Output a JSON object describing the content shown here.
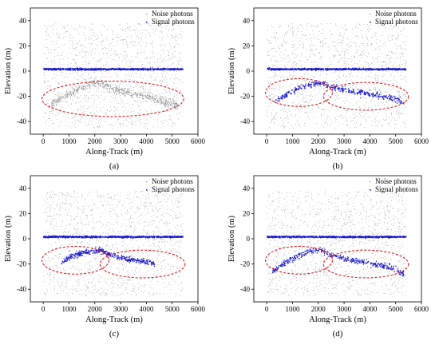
{
  "chart_data": [
    {
      "type": "scatter",
      "panel_label": "(a)",
      "xlabel": "Along-Track (m)",
      "ylabel": "Elevation (m)",
      "xlim": [
        -500,
        6000
      ],
      "ylim": [
        -50,
        50
      ],
      "xticks": [
        0,
        1000,
        2000,
        3000,
        4000,
        5000,
        6000
      ],
      "yticks": [
        -40,
        -20,
        0,
        20,
        40
      ],
      "legend": {
        "position": "top-right",
        "entries": [
          "Noise photons",
          "Signal photons"
        ]
      },
      "colors": {
        "noise": "#9a9a9a",
        "signal": "#1a1acc",
        "ellipse": "#e02020"
      },
      "noise_region": {
        "x": [
          0,
          5400
        ],
        "y": [
          -45,
          38
        ]
      },
      "series": [
        {
          "name": "Signal photons",
          "description": "water surface",
          "x": [
            0,
            5400
          ],
          "y": [
            1.5,
            1.5
          ]
        }
      ],
      "highlight_ellipses": [
        {
          "cx": 2700,
          "cy": -22,
          "rx": 2750,
          "ry": 14
        }
      ],
      "seabed_profile_noise_only": {
        "x": [
          300,
          1000,
          1700,
          2100,
          2500,
          3200,
          4000,
          4700,
          5200
        ],
        "y": [
          -26,
          -18,
          -11,
          -9,
          -12,
          -17,
          -20,
          -24,
          -27
        ]
      }
    },
    {
      "type": "scatter",
      "panel_label": "(b)",
      "xlabel": "Along-Track (m)",
      "ylabel": "Elevation (m)",
      "xlim": [
        -500,
        6000
      ],
      "ylim": [
        -50,
        50
      ],
      "xticks": [
        0,
        1000,
        2000,
        3000,
        4000,
        5000,
        6000
      ],
      "yticks": [
        -40,
        -20,
        0,
        20,
        40
      ],
      "legend": {
        "position": "top-right",
        "entries": [
          "Noise photons",
          "Signal photons"
        ]
      },
      "colors": {
        "noise": "#9a9a9a",
        "signal": "#1a1acc",
        "ellipse": "#e02020"
      },
      "noise_region": {
        "x": [
          0,
          5400
        ],
        "y": [
          -45,
          38
        ]
      },
      "series": [
        {
          "name": "Signal photons",
          "description": "water surface",
          "x": [
            0,
            5400
          ],
          "y": [
            1.5,
            1.5
          ]
        },
        {
          "name": "Signal photons",
          "description": "seabed",
          "x": [
            300,
            800,
            1300,
            1800,
            2100,
            2400,
            3000,
            3600,
            4200,
            4800,
            5300
          ],
          "y": [
            -24,
            -18,
            -13,
            -10,
            -9,
            -12,
            -15,
            -17,
            -19,
            -21,
            -25
          ]
        }
      ],
      "highlight_ellipses": [
        {
          "cx": 1250,
          "cy": -17,
          "rx": 1300,
          "ry": 11
        },
        {
          "cx": 3850,
          "cy": -20,
          "rx": 1650,
          "ry": 11
        }
      ]
    },
    {
      "type": "scatter",
      "panel_label": "(c)",
      "xlabel": "Along-Track (m)",
      "ylabel": "Elevation (m)",
      "xlim": [
        -500,
        6000
      ],
      "ylim": [
        -50,
        50
      ],
      "xticks": [
        0,
        1000,
        2000,
        3000,
        4000,
        5000,
        6000
      ],
      "yticks": [
        -40,
        -20,
        0,
        20,
        40
      ],
      "legend": {
        "position": "top-right",
        "entries": [
          "Noise photons",
          "Signal photons"
        ]
      },
      "colors": {
        "noise": "#9a9a9a",
        "signal": "#1a1acc",
        "ellipse": "#e02020"
      },
      "noise_region": {
        "x": [
          0,
          5400
        ],
        "y": [
          -45,
          38
        ]
      },
      "series": [
        {
          "name": "Signal photons",
          "description": "water surface",
          "x": [
            0,
            5400
          ],
          "y": [
            1.5,
            1.5
          ]
        },
        {
          "name": "Signal photons",
          "description": "seabed",
          "x": [
            700,
            1100,
            1500,
            1900,
            2200,
            2500,
            3000,
            3500,
            4000,
            4300
          ],
          "y": [
            -18,
            -14,
            -11,
            -10,
            -9,
            -12,
            -15,
            -17,
            -18,
            -20
          ]
        }
      ],
      "highlight_ellipses": [
        {
          "cx": 1250,
          "cy": -17,
          "rx": 1300,
          "ry": 11
        },
        {
          "cx": 3850,
          "cy": -20,
          "rx": 1650,
          "ry": 11
        }
      ]
    },
    {
      "type": "scatter",
      "panel_label": "(d)",
      "xlabel": "Along-Track (m)",
      "ylabel": "Elevation (m)",
      "xlim": [
        -500,
        6000
      ],
      "ylim": [
        -50,
        50
      ],
      "xticks": [
        0,
        1000,
        2000,
        3000,
        4000,
        5000,
        6000
      ],
      "yticks": [
        -40,
        -20,
        0,
        20,
        40
      ],
      "legend": {
        "position": "top-right",
        "entries": [
          "Noise photons",
          "Signal photons"
        ]
      },
      "colors": {
        "noise": "#9a9a9a",
        "signal": "#1a1acc",
        "ellipse": "#e02020"
      },
      "noise_region": {
        "x": [
          0,
          5400
        ],
        "y": [
          -45,
          38
        ]
      },
      "series": [
        {
          "name": "Signal photons",
          "description": "water surface",
          "x": [
            0,
            5400
          ],
          "y": [
            1.5,
            1.5
          ]
        },
        {
          "name": "Signal photons",
          "description": "seabed",
          "x": [
            200,
            700,
            1200,
            1700,
            2100,
            2400,
            3000,
            3600,
            4200,
            4800,
            5300
          ],
          "y": [
            -26,
            -19,
            -13,
            -10,
            -9,
            -12,
            -16,
            -18,
            -20,
            -23,
            -28
          ]
        }
      ],
      "highlight_ellipses": [
        {
          "cx": 1250,
          "cy": -17,
          "rx": 1300,
          "ry": 11
        },
        {
          "cx": 3850,
          "cy": -20,
          "rx": 1650,
          "ry": 11
        }
      ]
    }
  ]
}
